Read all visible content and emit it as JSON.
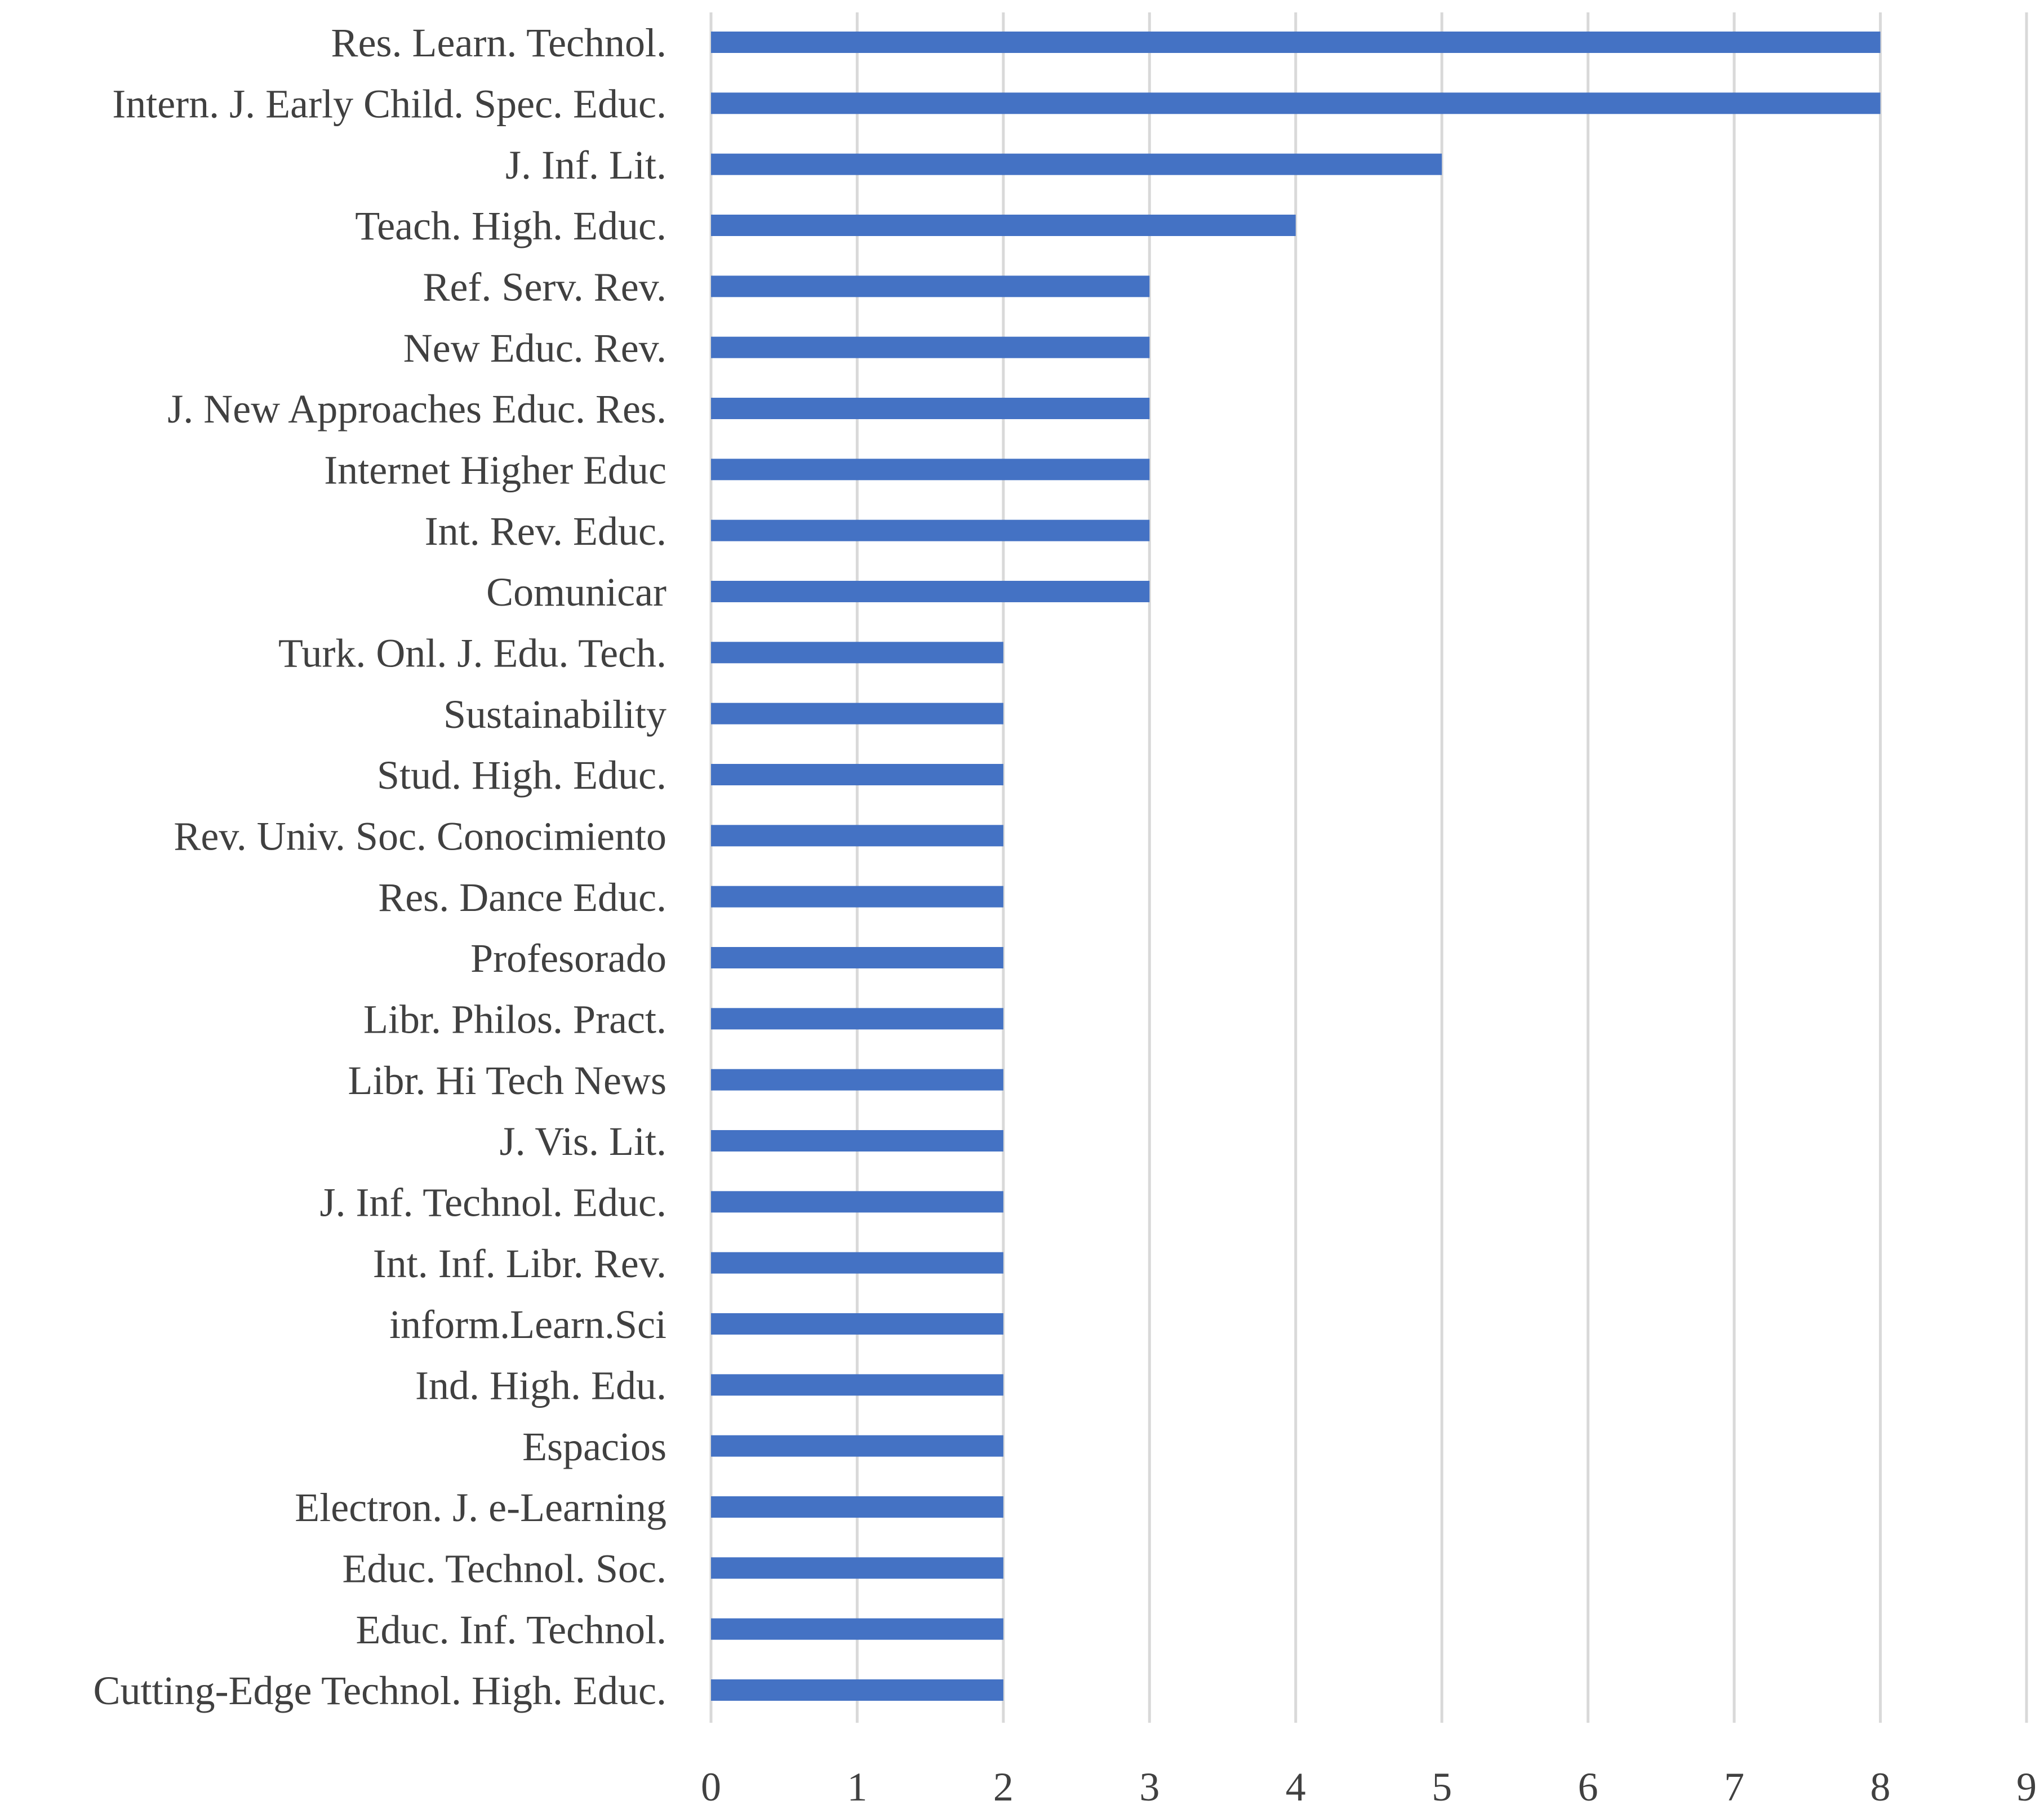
{
  "chart_data": {
    "type": "bar",
    "orientation": "horizontal",
    "title": "",
    "xlabel": "",
    "ylabel": "",
    "categories": [
      "Res. Learn. Technol.",
      "Intern. J. Early Child. Spec. Educ.",
      "J. Inf. Lit.",
      "Teach. High. Educ.",
      "Ref. Serv. Rev.",
      "New Educ. Rev.",
      "J. New Approaches Educ. Res.",
      "Internet Higher Educ",
      "Int. Rev. Educ.",
      "Comunicar",
      "Turk. Onl. J. Edu. Tech.",
      "Sustainability",
      "Stud. High. Educ.",
      "Rev. Univ. Soc. Conocimiento",
      "Res. Dance Educ.",
      "Profesorado",
      "Libr. Philos. Pract.",
      "Libr. Hi Tech News",
      "J. Vis. Lit.",
      "J. Inf. Technol. Educ.",
      "Int. Inf. Libr. Rev.",
      "inform.Learn.Sci",
      "Ind. High. Edu.",
      "Espacios",
      "Electron. J. e-Learning",
      "Educ. Technol. Soc.",
      "Educ. Inf. Technol.",
      "Cutting-Edge Technol. High. Educ."
    ],
    "values": [
      8,
      8,
      5,
      4,
      3,
      3,
      3,
      3,
      3,
      3,
      2,
      2,
      2,
      2,
      2,
      2,
      2,
      2,
      2,
      2,
      2,
      2,
      2,
      2,
      2,
      2,
      2,
      2
    ],
    "xlim": [
      0,
      9
    ],
    "xticks": [
      "0",
      "1",
      "2",
      "3",
      "4",
      "5",
      "6",
      "7",
      "8",
      "9"
    ],
    "grid": true,
    "legend": "none",
    "bar_color": "#4472c4",
    "grid_color": "#d9d9d9",
    "text_color": "#404040"
  }
}
